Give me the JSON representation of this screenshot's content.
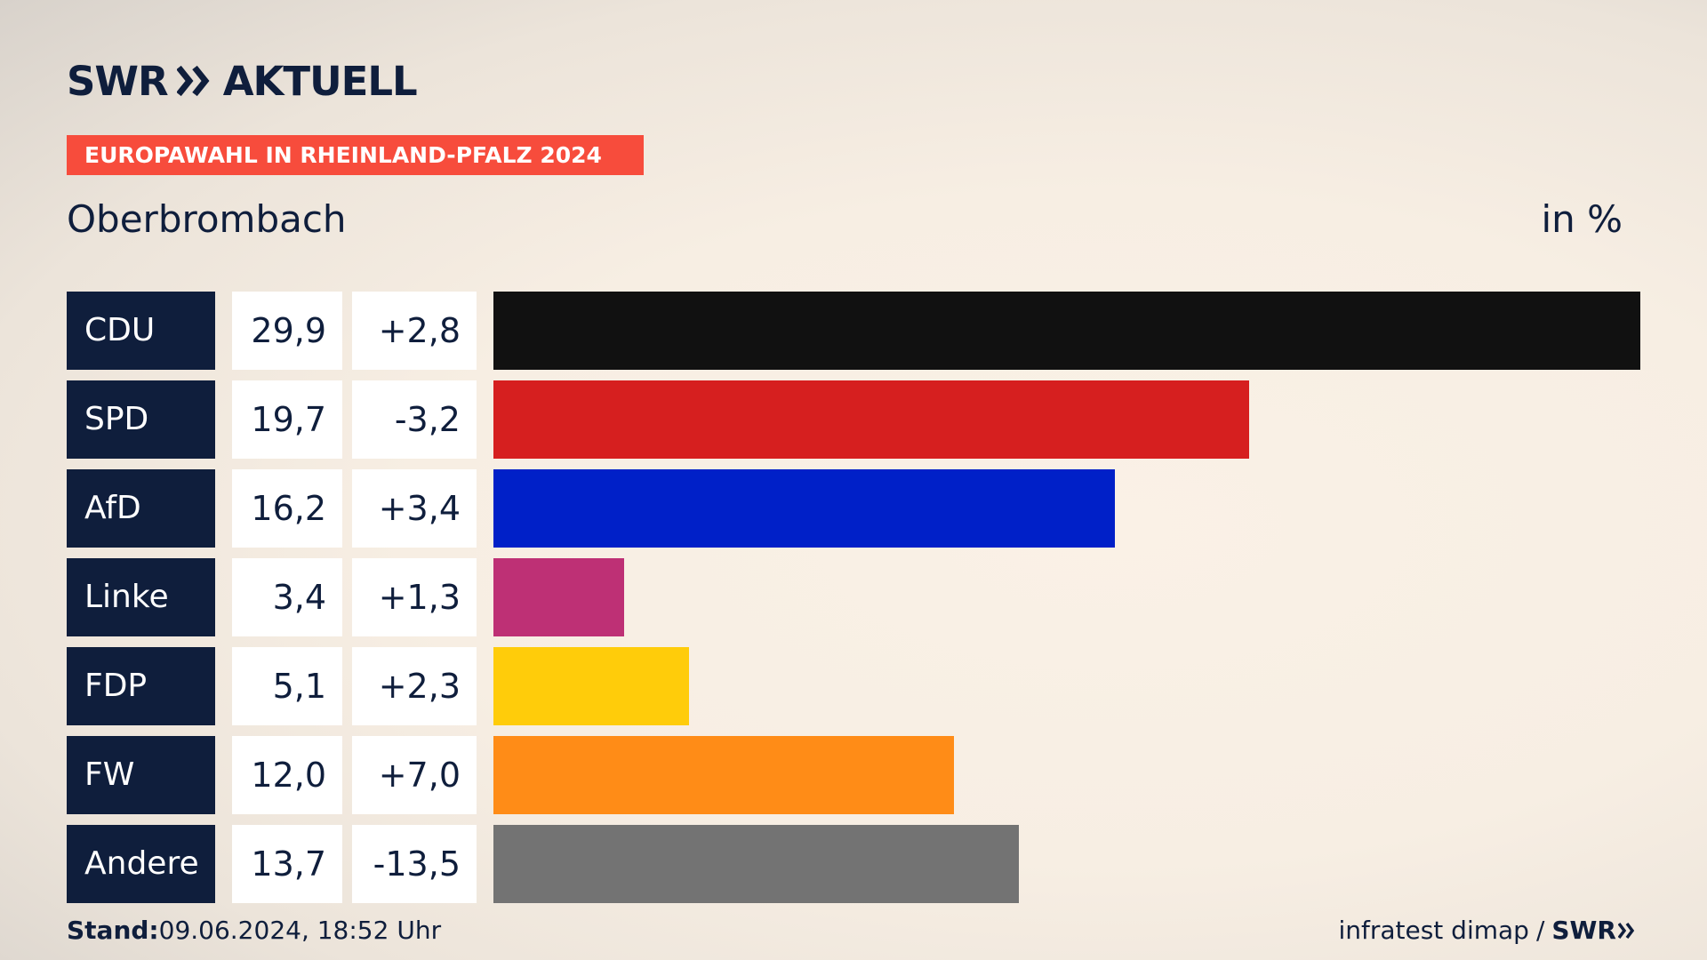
{
  "brand": {
    "logo_left": "SWR",
    "logo_right": "AKTUELL"
  },
  "banner": "EUROPAWAHL IN RHEINLAND-PFALZ 2024",
  "place": "Oberbrombach",
  "unit": "in %",
  "footer": {
    "stand_label": "Stand:",
    "stand_value": "09.06.2024, 18:52 Uhr",
    "source": "infratest dimap",
    "separator": "/",
    "source_brand": "SWR"
  },
  "colors": {
    "navy": "#0f1e3c",
    "banner": "#f74c3c"
  },
  "chart_data": {
    "type": "bar",
    "orientation": "horizontal",
    "categories": [
      "CDU",
      "SPD",
      "AfD",
      "Linke",
      "FDP",
      "FW",
      "Andere"
    ],
    "values": [
      29.9,
      19.7,
      16.2,
      3.4,
      5.1,
      12.0,
      13.7
    ],
    "value_labels": [
      "29,9",
      "19,7",
      "16,2",
      "3,4",
      "5,1",
      "12,0",
      "13,7"
    ],
    "changes": [
      2.8,
      -3.2,
      3.4,
      1.3,
      2.3,
      7.0,
      -13.5
    ],
    "change_labels": [
      "+2,8",
      "-3,2",
      "+3,4",
      "+1,3",
      "+2,3",
      "+7,0",
      "-13,5"
    ],
    "colors": [
      "#111111",
      "#d61f1f",
      "#0020c8",
      "#be3075",
      "#ffcc0a",
      "#ff8c17",
      "#737373"
    ],
    "xlim": [
      0,
      29.9
    ],
    "grid": false
  }
}
